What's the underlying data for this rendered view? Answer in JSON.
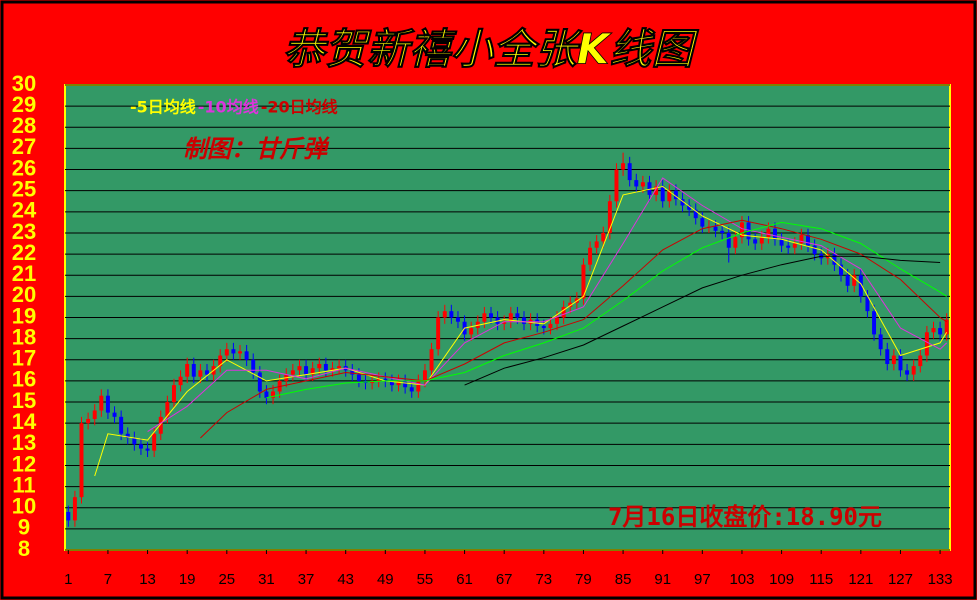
{
  "chart_data": {
    "type": "candlestick",
    "title": "恭贺新禧小全张K线图",
    "annotations": [
      "制图：甘斤弹",
      "7月16日收盘价:18.90元"
    ],
    "x": [
      1,
      2,
      3,
      4,
      5,
      6,
      7,
      8,
      9,
      10,
      11,
      12,
      13,
      14,
      15,
      16,
      17,
      18,
      19,
      20,
      21,
      22,
      23,
      24,
      25,
      26,
      27,
      28,
      29,
      30,
      31,
      32,
      33,
      34,
      35,
      36,
      37,
      38,
      39,
      40,
      41,
      42,
      43,
      44,
      45,
      46,
      47,
      48,
      49,
      50,
      51,
      52,
      53,
      54,
      55,
      56,
      57,
      58,
      59,
      60,
      61,
      62,
      63,
      64,
      65,
      66,
      67,
      68,
      69,
      70,
      71,
      72,
      73,
      74,
      75,
      76,
      77,
      78,
      79,
      80,
      81,
      82,
      83,
      84,
      85,
      86,
      87,
      88,
      89,
      90,
      91,
      92,
      93,
      94,
      95,
      96,
      97,
      98,
      99,
      100,
      101,
      102,
      103,
      104,
      105,
      106,
      107,
      108,
      109,
      110,
      111,
      112,
      113,
      114,
      115,
      116,
      117,
      118,
      119,
      120,
      121,
      122,
      123,
      124,
      125,
      126,
      127,
      128,
      129,
      130,
      131,
      132,
      133,
      134
    ],
    "open": [
      9.8,
      9.4,
      10.5,
      14.0,
      14.2,
      14.6,
      15.3,
      14.5,
      14.3,
      13.5,
      13.3,
      13.0,
      12.8,
      12.7,
      13.5,
      14.3,
      15.0,
      15.8,
      16.2,
      16.8,
      16.2,
      16.5,
      16.3,
      16.7,
      17.2,
      17.5,
      17.3,
      17.4,
      17.0,
      16.4,
      15.5,
      15.2,
      15.5,
      16.0,
      16.3,
      16.5,
      16.7,
      16.3,
      16.6,
      16.8,
      16.5,
      16.6,
      16.7,
      16.5,
      16.3,
      16.0,
      15.9,
      16.0,
      16.1,
      16.0,
      15.8,
      16.0,
      15.7,
      15.5,
      16.0,
      16.5,
      17.5,
      19.0,
      19.3,
      19.0,
      18.8,
      18.2,
      18.5,
      18.8,
      19.2,
      19.0,
      18.7,
      18.8,
      19.2,
      19.0,
      18.7,
      18.9,
      18.6,
      18.5,
      18.7,
      19.0,
      19.5,
      19.7,
      19.9,
      21.5,
      22.3,
      22.6,
      23.0,
      24.5,
      26.0,
      26.3,
      25.5,
      25.2,
      25.4,
      24.8,
      25.2,
      24.5,
      25.0,
      24.6,
      24.3,
      24.1,
      23.7,
      23.3,
      23.3,
      23.1,
      23.0,
      22.3,
      22.8,
      23.5,
      22.7,
      22.5,
      22.8,
      23.2,
      22.7,
      22.4,
      22.3,
      22.5,
      22.9,
      22.4,
      22.0,
      21.8,
      22.0,
      21.5,
      21.0,
      20.5,
      21.0,
      20.0,
      19.3,
      18.2,
      17.5,
      16.8,
      17.2,
      16.5,
      16.3,
      16.7,
      17.2,
      18.3,
      18.5,
      18.2
    ],
    "high": [
      10.1,
      10.8,
      14.3,
      14.5,
      14.9,
      15.6,
      15.6,
      14.8,
      14.6,
      13.8,
      13.6,
      13.3,
      13.1,
      13.8,
      14.6,
      15.3,
      16.1,
      16.5,
      17.1,
      17.1,
      16.8,
      16.8,
      17.0,
      17.5,
      17.8,
      17.8,
      17.7,
      17.7,
      17.3,
      16.7,
      15.8,
      15.8,
      16.3,
      16.6,
      16.8,
      17.0,
      17.0,
      16.9,
      17.1,
      17.1,
      16.9,
      17.0,
      17.0,
      16.8,
      16.6,
      16.3,
      16.3,
      16.4,
      16.4,
      16.3,
      16.3,
      16.3,
      16.0,
      16.3,
      16.8,
      17.8,
      19.3,
      19.6,
      19.6,
      19.3,
      19.1,
      18.8,
      19.1,
      19.5,
      19.5,
      19.3,
      19.1,
      19.5,
      19.5,
      19.3,
      19.2,
      19.2,
      18.9,
      19.0,
      19.3,
      19.8,
      20.0,
      20.2,
      21.8,
      22.6,
      22.9,
      23.3,
      24.8,
      26.3,
      26.8,
      26.6,
      25.8,
      25.7,
      25.7,
      25.5,
      25.5,
      25.3,
      25.3,
      24.9,
      24.6,
      24.4,
      24.0,
      23.6,
      23.6,
      23.4,
      23.3,
      23.1,
      23.8,
      23.8,
      23.0,
      23.1,
      23.5,
      23.5,
      23.0,
      22.7,
      22.8,
      23.2,
      23.2,
      22.7,
      22.3,
      22.3,
      22.3,
      21.8,
      21.3,
      21.3,
      21.3,
      20.3,
      19.6,
      18.5,
      17.8,
      17.5,
      17.5,
      16.8,
      17.0,
      17.5,
      18.6,
      18.8,
      18.8,
      19.2
    ],
    "low": [
      9.1,
      9.1,
      10.2,
      13.7,
      13.9,
      14.3,
      14.2,
      14.0,
      13.2,
      13.0,
      12.7,
      12.5,
      12.4,
      12.4,
      13.2,
      14.0,
      14.7,
      15.5,
      15.9,
      15.9,
      15.9,
      16.0,
      16.0,
      16.4,
      16.9,
      17.0,
      17.0,
      16.7,
      16.1,
      15.2,
      14.9,
      14.9,
      15.2,
      15.7,
      16.0,
      16.2,
      16.0,
      16.0,
      16.3,
      16.2,
      16.2,
      16.3,
      16.2,
      16.0,
      15.7,
      15.6,
      15.6,
      15.7,
      15.7,
      15.5,
      15.5,
      15.4,
      15.2,
      15.2,
      15.7,
      16.2,
      17.2,
      18.7,
      18.7,
      18.5,
      17.9,
      17.9,
      18.2,
      18.5,
      18.7,
      18.4,
      18.4,
      18.5,
      18.7,
      18.4,
      18.4,
      18.3,
      18.2,
      18.2,
      18.4,
      18.7,
      19.2,
      19.4,
      19.6,
      21.2,
      22.0,
      22.3,
      22.7,
      24.2,
      25.7,
      25.2,
      24.9,
      24.9,
      24.5,
      24.5,
      24.2,
      24.2,
      24.3,
      24.0,
      23.8,
      23.4,
      23.0,
      23.0,
      22.8,
      22.7,
      21.6,
      22.0,
      22.5,
      22.4,
      22.2,
      22.2,
      22.5,
      22.4,
      22.1,
      22.0,
      22.0,
      22.2,
      22.1,
      21.7,
      21.5,
      21.5,
      21.2,
      20.7,
      20.2,
      20.2,
      19.7,
      19.0,
      17.9,
      17.2,
      16.5,
      16.5,
      16.2,
      16.0,
      16.0,
      16.4,
      16.9,
      18.0,
      17.9,
      17.9
    ],
    "close": [
      9.4,
      10.5,
      14.0,
      14.2,
      14.6,
      15.3,
      14.5,
      14.3,
      13.5,
      13.3,
      13.0,
      12.8,
      12.7,
      13.5,
      14.3,
      15.0,
      15.8,
      16.2,
      16.8,
      16.2,
      16.5,
      16.3,
      16.7,
      17.2,
      17.5,
      17.3,
      17.4,
      17.0,
      16.4,
      15.5,
      15.2,
      15.5,
      16.0,
      16.3,
      16.5,
      16.7,
      16.3,
      16.6,
      16.8,
      16.5,
      16.6,
      16.7,
      16.5,
      16.3,
      16.0,
      15.9,
      16.0,
      16.1,
      16.0,
      15.8,
      16.0,
      15.7,
      15.5,
      16.0,
      16.5,
      17.5,
      19.0,
      19.3,
      19.0,
      18.8,
      18.2,
      18.5,
      18.8,
      19.2,
      19.0,
      18.7,
      18.8,
      19.2,
      19.0,
      18.7,
      18.9,
      18.6,
      18.5,
      18.7,
      19.0,
      19.5,
      19.7,
      19.9,
      21.5,
      22.3,
      22.6,
      23.0,
      24.5,
      26.0,
      26.3,
      25.5,
      25.2,
      25.4,
      24.8,
      25.2,
      24.5,
      25.0,
      24.6,
      24.3,
      24.1,
      23.7,
      23.3,
      23.3,
      23.1,
      23.0,
      22.3,
      22.8,
      23.5,
      22.7,
      22.5,
      22.8,
      23.2,
      22.7,
      22.4,
      22.3,
      22.5,
      22.9,
      22.4,
      22.0,
      21.8,
      22.0,
      21.5,
      21.0,
      20.5,
      21.0,
      20.0,
      19.3,
      18.2,
      17.5,
      16.8,
      17.2,
      16.5,
      16.3,
      16.7,
      17.2,
      18.3,
      18.5,
      18.2,
      18.9
    ],
    "up_color": "#ff0000",
    "down_color": "#0000ff",
    "series": [
      {
        "name": "-5日均线",
        "color": "#ffff00",
        "x": [
          5,
          7,
          13,
          19,
          25,
          31,
          37,
          43,
          49,
          55,
          61,
          67,
          73,
          79,
          85,
          91,
          97,
          103,
          109,
          115,
          121,
          127,
          133,
          134
        ],
        "values": [
          11.5,
          13.5,
          13.2,
          15.5,
          17.0,
          16.0,
          16.3,
          16.6,
          16.0,
          15.8,
          18.5,
          18.9,
          18.7,
          20.0,
          24.8,
          25.2,
          23.8,
          22.9,
          22.7,
          22.2,
          20.6,
          17.2,
          17.8,
          18.3
        ]
      },
      {
        "name": "-10均线",
        "color": "#dd33dd",
        "x": [
          13,
          19,
          25,
          31,
          37,
          43,
          49,
          55,
          61,
          67,
          73,
          79,
          85,
          91,
          97,
          103,
          109,
          115,
          121,
          127,
          133,
          134
        ],
        "values": [
          13.6,
          14.8,
          16.5,
          16.5,
          16.1,
          16.6,
          16.2,
          15.8,
          17.8,
          18.8,
          18.8,
          19.5,
          22.5,
          25.6,
          24.3,
          23.2,
          22.8,
          22.4,
          21.3,
          18.5,
          17.5,
          17.8
        ]
      },
      {
        "name": "-20日均线",
        "color": "#cc0000",
        "x": [
          21,
          25,
          31,
          37,
          43,
          49,
          55,
          61,
          67,
          73,
          79,
          85,
          91,
          97,
          103,
          109,
          115,
          121,
          127,
          133,
          134
        ],
        "values": [
          13.3,
          14.5,
          15.6,
          16.0,
          16.4,
          16.2,
          16.0,
          16.8,
          17.8,
          18.3,
          18.9,
          20.5,
          22.2,
          23.2,
          23.6,
          23.2,
          22.7,
          22.0,
          20.8,
          19.0,
          18.8
        ]
      },
      {
        "color": "#00ff00",
        "x": [
          31,
          37,
          43,
          49,
          55,
          61,
          67,
          73,
          79,
          85,
          91,
          97,
          103,
          109,
          115,
          121,
          127,
          133,
          134
        ],
        "values": [
          15.2,
          15.6,
          15.9,
          16.0,
          16.0,
          16.4,
          17.2,
          17.8,
          18.5,
          19.8,
          21.2,
          22.3,
          23.0,
          23.5,
          23.2,
          22.5,
          21.3,
          20.2,
          20.0
        ]
      },
      {
        "color": "#000000",
        "x": [
          61,
          67,
          73,
          79,
          85,
          91,
          97,
          103,
          109,
          115,
          121,
          127,
          133
        ],
        "values": [
          15.8,
          16.6,
          17.1,
          17.7,
          18.6,
          19.5,
          20.4,
          21.0,
          21.5,
          21.9,
          21.9,
          21.7,
          21.6
        ]
      }
    ],
    "xlim": [
      0.5,
      134.5
    ],
    "xticks": [
      1,
      7,
      13,
      19,
      25,
      31,
      37,
      43,
      49,
      55,
      61,
      67,
      73,
      79,
      85,
      91,
      97,
      103,
      109,
      115,
      121,
      127,
      133
    ],
    "ylim": [
      8,
      30
    ],
    "yticks": [
      8,
      9,
      10,
      11,
      12,
      13,
      14,
      15,
      16,
      17,
      18,
      19,
      20,
      21,
      22,
      23,
      24,
      25,
      26,
      27,
      28,
      29,
      30
    ],
    "grid": true
  }
}
